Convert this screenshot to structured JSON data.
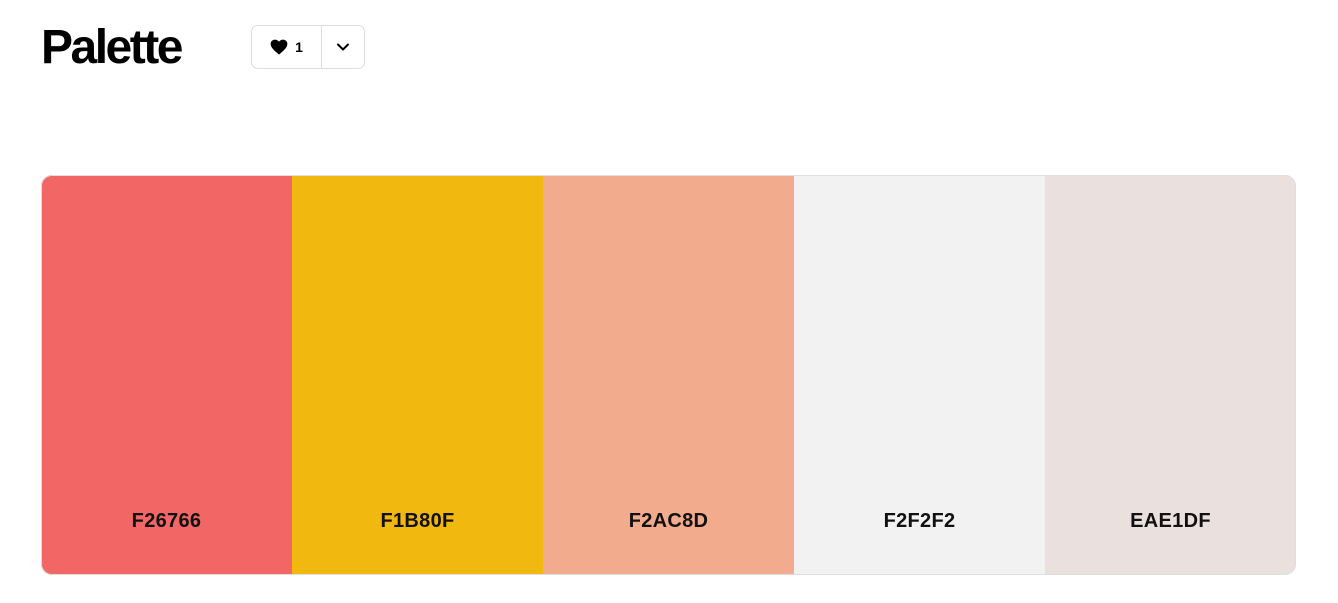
{
  "header": {
    "title": "Palette",
    "like_count": "1",
    "icons": {
      "like": "heart-icon",
      "more": "chevron-down-icon"
    }
  },
  "palette": {
    "swatches": [
      {
        "hex": "F26766",
        "color": "#F26766"
      },
      {
        "hex": "F1B80F",
        "color": "#F1B80F"
      },
      {
        "hex": "F2AC8D",
        "color": "#F2AC8D"
      },
      {
        "hex": "F2F2F2",
        "color": "#F2F2F2"
      },
      {
        "hex": "EAE1DF",
        "color": "#EAE1DF"
      }
    ]
  }
}
